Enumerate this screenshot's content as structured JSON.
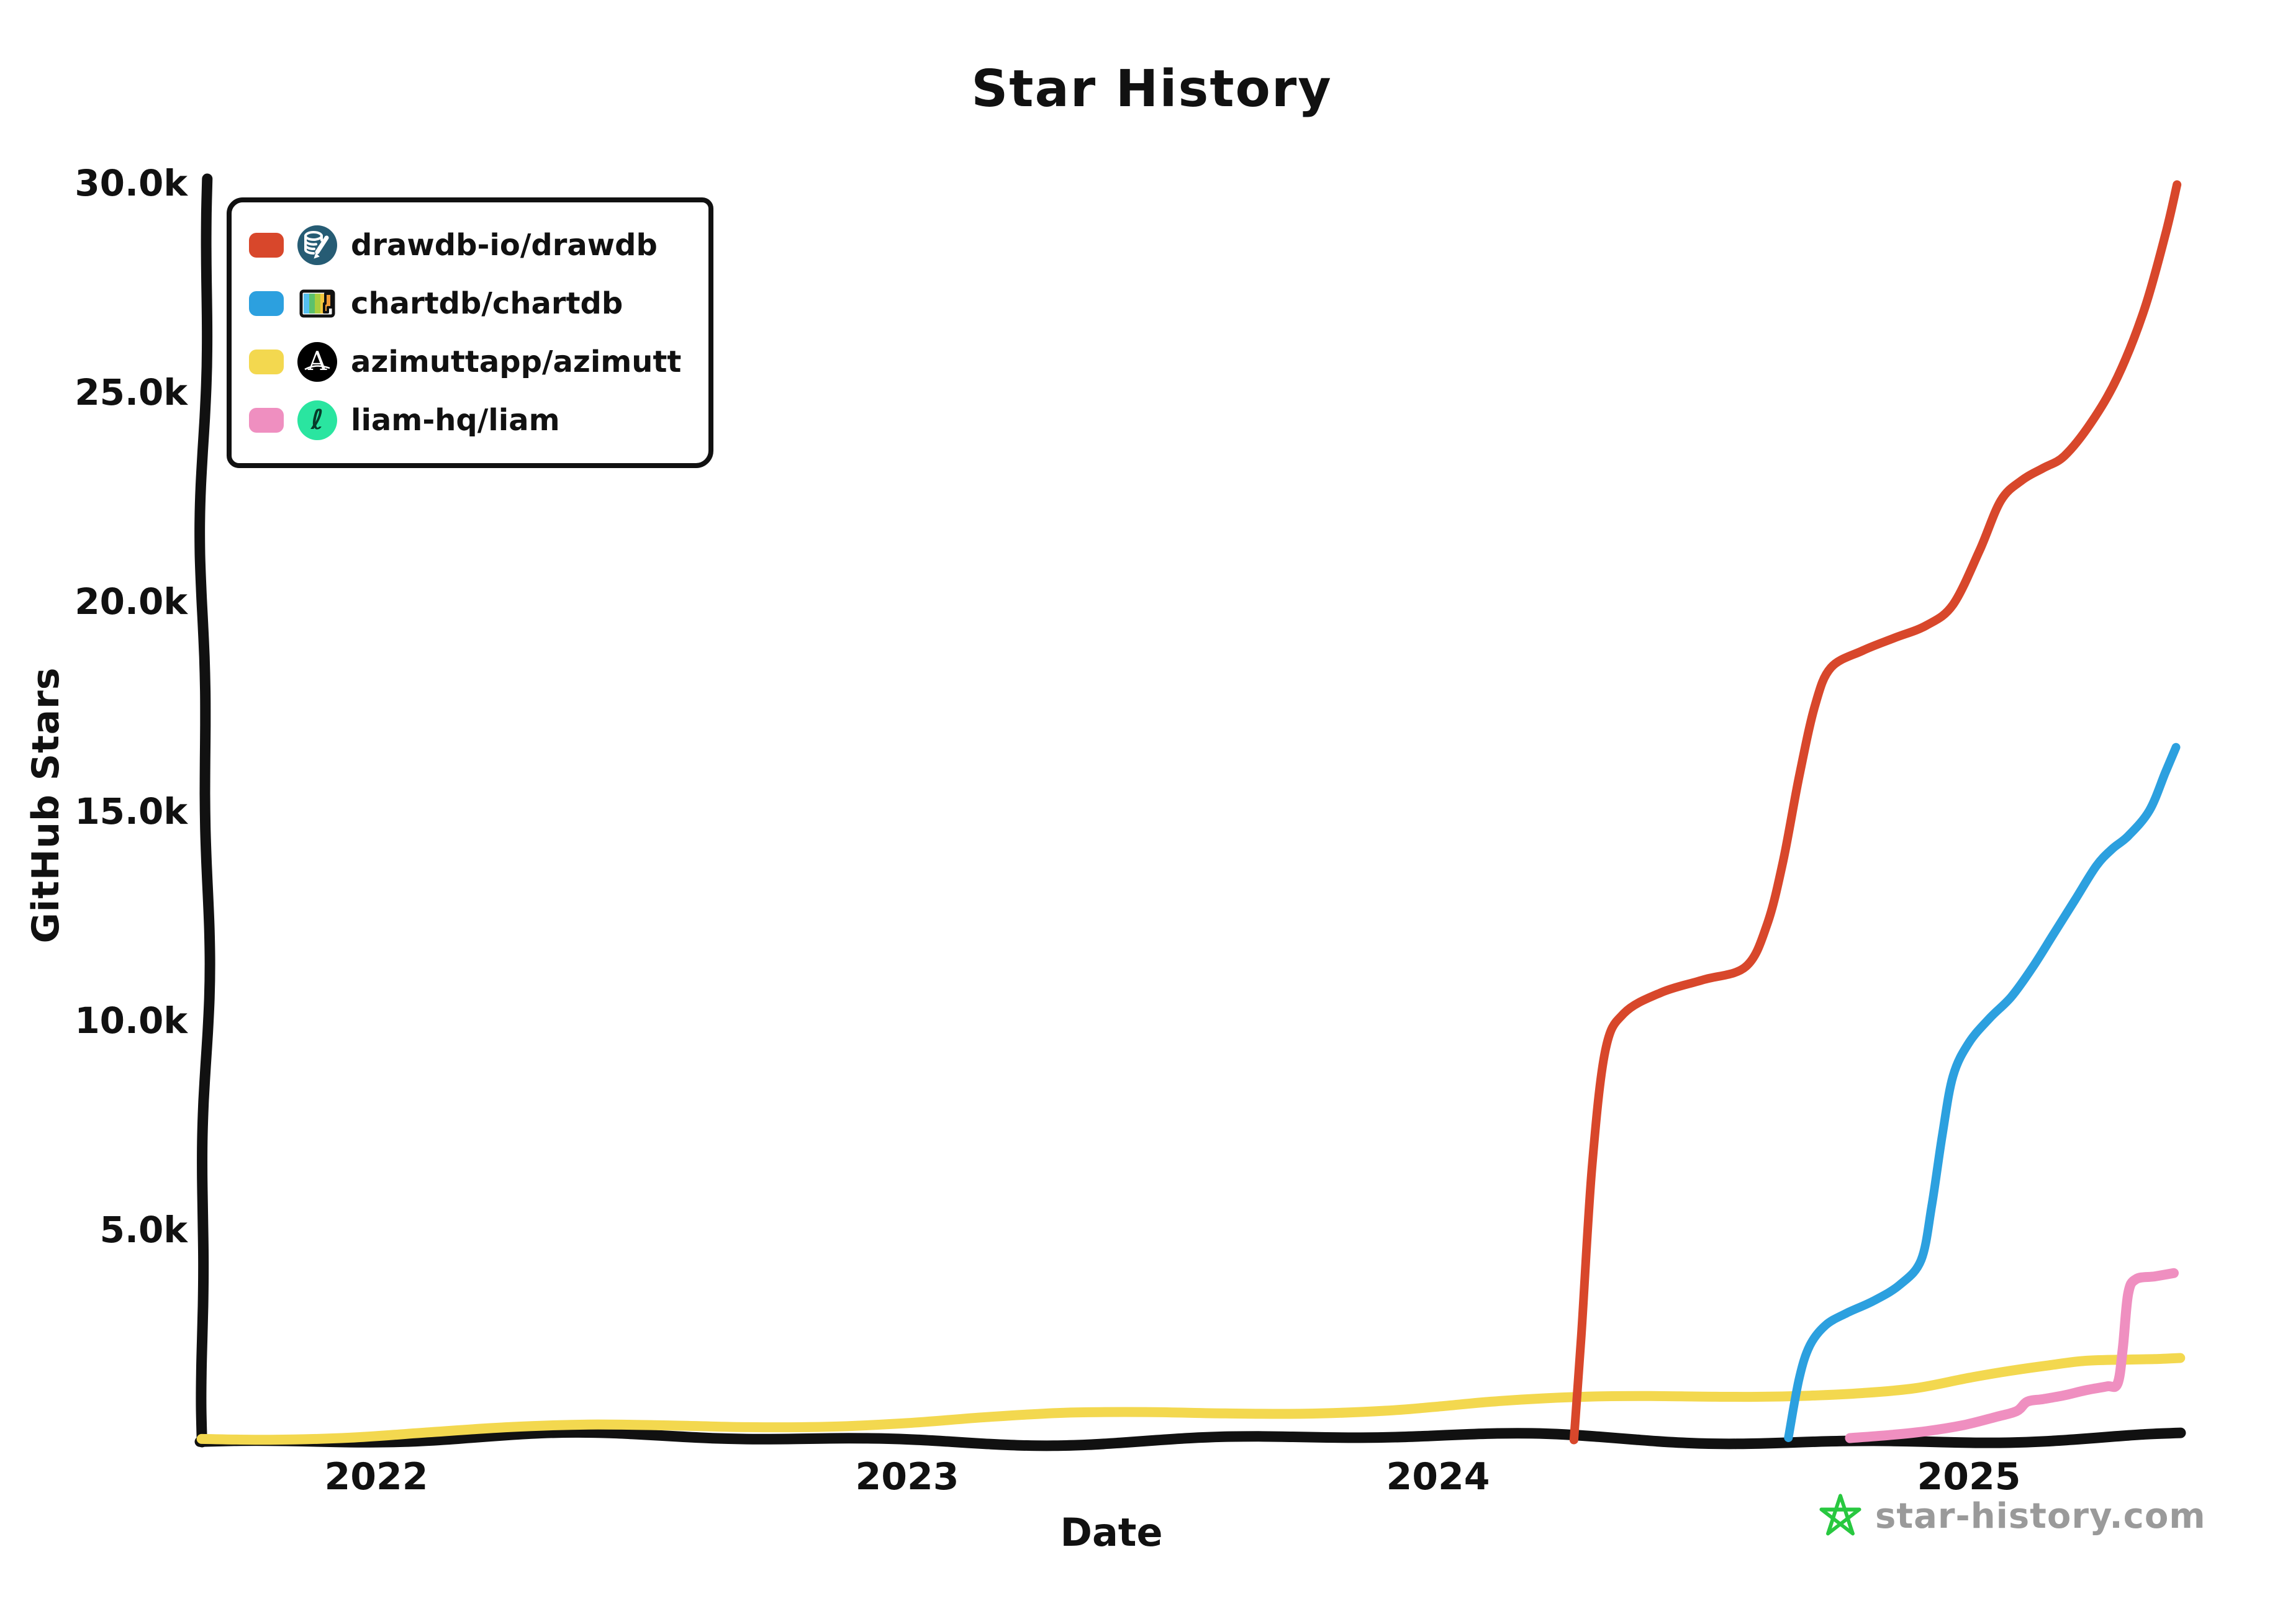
{
  "title": "Star History",
  "y_axis_label": "GitHub Stars",
  "x_axis_label": "Date",
  "footer": {
    "site_label": "star-history.com",
    "star_icon_color": "#28c840",
    "text_color": "#9a9a9a"
  },
  "legend": [
    {
      "repo": "drawdb-io/drawdb",
      "color": "#d8472b",
      "avatar": "database-pencil-icon",
      "avatar_bg": "#265c74"
    },
    {
      "repo": "chartdb/chartdb",
      "color": "#2ca0df",
      "avatar": "striped-elephant-icon",
      "avatar_bg": "#ffffff"
    },
    {
      "repo": "azimuttapp/azimutt",
      "color": "#f3d84f",
      "avatar": "letter-a-icon",
      "avatar_bg": "#000000",
      "avatar_glyph": "A"
    },
    {
      "repo": "liam-hq/liam",
      "color": "#ef8fc0",
      "avatar": "script-l-icon",
      "avatar_bg": "#2ae5a0",
      "avatar_glyph": "ℓ"
    }
  ],
  "chart_data": {
    "type": "line",
    "title": "Star History",
    "xlabel": "Date",
    "ylabel": "GitHub Stars",
    "grid": false,
    "legend_position": "top-left",
    "x_range": [
      2021.67,
      2025.45
    ],
    "y_range": [
      0,
      30000
    ],
    "x_ticks": [
      2022,
      2023,
      2024,
      2025
    ],
    "x_tick_labels": [
      "2022",
      "2023",
      "2024",
      "2025"
    ],
    "y_ticks": [
      5000,
      10000,
      15000,
      20000,
      25000,
      30000
    ],
    "y_tick_labels": [
      "5.0k",
      "10.0k",
      "15.0k",
      "20.0k",
      "25.0k",
      "30.0k"
    ],
    "series": [
      {
        "name": "drawdb-io/drawdb",
        "color": "#d8472b",
        "points": [
          [
            2024.256,
            0
          ],
          [
            2024.27,
            2500
          ],
          [
            2024.29,
            6500
          ],
          [
            2024.315,
            9300
          ],
          [
            2024.35,
            10200
          ],
          [
            2024.42,
            10700
          ],
          [
            2024.5,
            11000
          ],
          [
            2024.58,
            11300
          ],
          [
            2024.62,
            12300
          ],
          [
            2024.65,
            13800
          ],
          [
            2024.68,
            15800
          ],
          [
            2024.71,
            17500
          ],
          [
            2024.74,
            18400
          ],
          [
            2024.8,
            18800
          ],
          [
            2024.86,
            19100
          ],
          [
            2024.92,
            19400
          ],
          [
            2024.97,
            19900
          ],
          [
            2025.02,
            21200
          ],
          [
            2025.06,
            22400
          ],
          [
            2025.1,
            22900
          ],
          [
            2025.14,
            23200
          ],
          [
            2025.18,
            23500
          ],
          [
            2025.23,
            24300
          ],
          [
            2025.28,
            25400
          ],
          [
            2025.33,
            27000
          ],
          [
            2025.37,
            28800
          ],
          [
            2025.392,
            30000
          ]
        ]
      },
      {
        "name": "chartdb/chartdb",
        "color": "#2ca0df",
        "points": [
          [
            2024.66,
            0
          ],
          [
            2024.68,
            1400
          ],
          [
            2024.7,
            2200
          ],
          [
            2024.73,
            2700
          ],
          [
            2024.77,
            3000
          ],
          [
            2024.82,
            3300
          ],
          [
            2024.87,
            3700
          ],
          [
            2024.91,
            4300
          ],
          [
            2024.93,
            5600
          ],
          [
            2024.95,
            7300
          ],
          [
            2024.97,
            8700
          ],
          [
            2025.0,
            9500
          ],
          [
            2025.04,
            10100
          ],
          [
            2025.08,
            10600
          ],
          [
            2025.12,
            11300
          ],
          [
            2025.16,
            12100
          ],
          [
            2025.2,
            12900
          ],
          [
            2025.24,
            13700
          ],
          [
            2025.27,
            14100
          ],
          [
            2025.3,
            14400
          ],
          [
            2025.34,
            15000
          ],
          [
            2025.37,
            15900
          ],
          [
            2025.39,
            16500
          ]
        ]
      },
      {
        "name": "azimuttapp/azimutt",
        "color": "#f3d84f",
        "points": [
          [
            2021.671,
            20
          ],
          [
            2021.8,
            60
          ],
          [
            2021.95,
            110
          ],
          [
            2022.1,
            170
          ],
          [
            2022.25,
            215
          ],
          [
            2022.4,
            260
          ],
          [
            2022.55,
            300
          ],
          [
            2022.7,
            340
          ],
          [
            2022.85,
            380
          ],
          [
            2023.0,
            420
          ],
          [
            2023.15,
            480
          ],
          [
            2023.3,
            540
          ],
          [
            2023.45,
            590
          ],
          [
            2023.6,
            640
          ],
          [
            2023.75,
            690
          ],
          [
            2023.9,
            740
          ],
          [
            2024.0,
            790
          ],
          [
            2024.1,
            850
          ],
          [
            2024.2,
            890
          ],
          [
            2024.3,
            930
          ],
          [
            2024.4,
            970
          ],
          [
            2024.5,
            1010
          ],
          [
            2024.6,
            1060
          ],
          [
            2024.7,
            1120
          ],
          [
            2024.8,
            1180
          ],
          [
            2024.9,
            1260
          ],
          [
            2025.0,
            1450
          ],
          [
            2025.08,
            1580
          ],
          [
            2025.15,
            1680
          ],
          [
            2025.22,
            1780
          ],
          [
            2025.3,
            1820
          ],
          [
            2025.35,
            1850
          ],
          [
            2025.398,
            1900
          ]
        ]
      },
      {
        "name": "liam-hq/liam",
        "color": "#ef8fc0",
        "points": [
          [
            2024.776,
            0
          ],
          [
            2024.85,
            60
          ],
          [
            2024.92,
            150
          ],
          [
            2024.99,
            300
          ],
          [
            2025.05,
            500
          ],
          [
            2025.09,
            650
          ],
          [
            2025.11,
            880
          ],
          [
            2025.14,
            950
          ],
          [
            2025.18,
            1050
          ],
          [
            2025.22,
            1180
          ],
          [
            2025.26,
            1280
          ],
          [
            2025.28,
            1350
          ],
          [
            2025.29,
            2200
          ],
          [
            2025.3,
            3500
          ],
          [
            2025.315,
            3850
          ],
          [
            2025.35,
            3920
          ],
          [
            2025.386,
            4000
          ]
        ]
      }
    ]
  }
}
